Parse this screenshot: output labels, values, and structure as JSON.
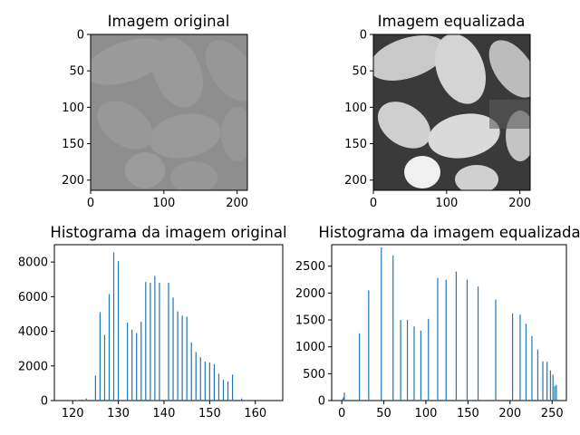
{
  "chart_data": [
    {
      "type": "image",
      "title": "Imagem original",
      "xlim": [
        0,
        214
      ],
      "ylim": [
        214,
        0
      ],
      "xticks": [
        0,
        100,
        200
      ],
      "yticks": [
        0,
        50,
        100,
        150,
        200
      ],
      "colormap": "gray",
      "tone": "low-contrast"
    },
    {
      "type": "image",
      "title": "Imagem equalizada",
      "xlim": [
        0,
        214
      ],
      "ylim": [
        214,
        0
      ],
      "xticks": [
        0,
        100,
        200
      ],
      "yticks": [
        0,
        50,
        100,
        150,
        200
      ],
      "colormap": "gray",
      "tone": "high-contrast"
    },
    {
      "type": "bar",
      "title": "Histograma da imagem original",
      "color": "#1f77b4",
      "xlim": [
        116,
        166
      ],
      "ylim": [
        0,
        9000
      ],
      "xticks": [
        120,
        130,
        140,
        150,
        160
      ],
      "yticks": [
        0,
        2000,
        4000,
        6000,
        8000
      ],
      "x": [
        120,
        121,
        122,
        123,
        124,
        125,
        126,
        127,
        128,
        129,
        130,
        131,
        132,
        133,
        134,
        135,
        136,
        137,
        138,
        139,
        140,
        141,
        142,
        143,
        144,
        145,
        146,
        147,
        148,
        149,
        150,
        151,
        152,
        153,
        154,
        155,
        156,
        157,
        158
      ],
      "values": [
        10,
        20,
        60,
        120,
        0,
        1450,
        5100,
        3800,
        6150,
        8550,
        8050,
        0,
        4500,
        4100,
        3900,
        4550,
        6850,
        6800,
        7200,
        6800,
        0,
        6800,
        5950,
        5150,
        4900,
        4850,
        3350,
        2800,
        2500,
        2250,
        2200,
        2100,
        1550,
        1200,
        1100,
        1500,
        0,
        120,
        30
      ]
    },
    {
      "type": "bar",
      "title": "Histograma da imagem equalizada",
      "color": "#1f77b4",
      "xlim": [
        -12,
        267
      ],
      "ylim": [
        0,
        2900
      ],
      "xticks": [
        0,
        50,
        100,
        150,
        200,
        250
      ],
      "yticks": [
        0,
        500,
        1000,
        1500,
        2000,
        2500
      ],
      "x": [
        1,
        2,
        3,
        21,
        32,
        47,
        61,
        70,
        78,
        86,
        94,
        103,
        114,
        124,
        136,
        149,
        162,
        183,
        203,
        212,
        219,
        226,
        233,
        239,
        244,
        248,
        251,
        253,
        255
      ],
      "values": [
        30,
        60,
        150,
        1250,
        2050,
        2850,
        2700,
        1500,
        1500,
        1380,
        1300,
        1520,
        2280,
        2250,
        2400,
        2250,
        2120,
        1880,
        1620,
        1600,
        1430,
        1200,
        950,
        730,
        720,
        560,
        480,
        270,
        290
      ]
    }
  ]
}
